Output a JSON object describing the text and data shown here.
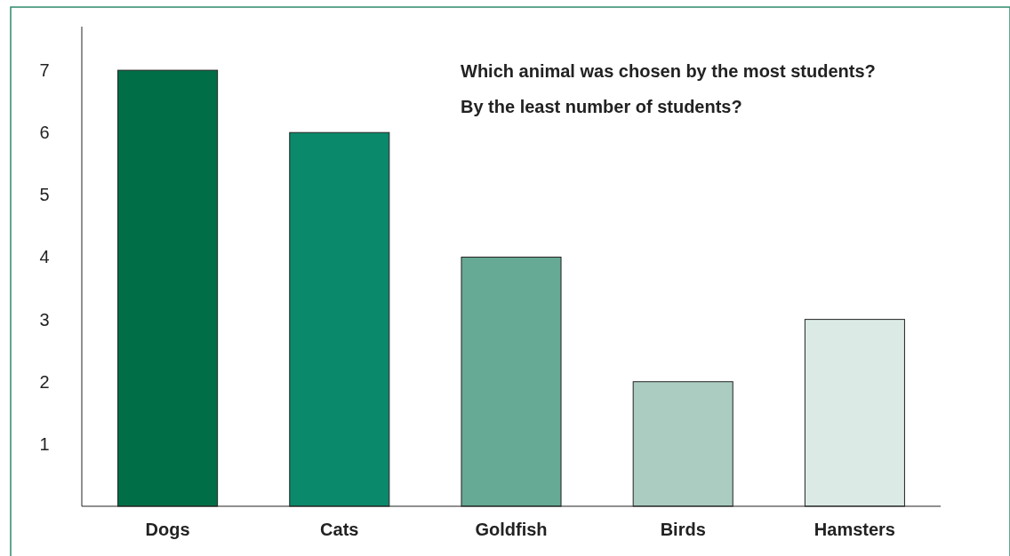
{
  "chart_data": {
    "type": "bar",
    "categories": [
      "Dogs",
      "Cats",
      "Goldfish",
      "Birds",
      "Hamsters"
    ],
    "values": [
      7,
      6,
      4,
      2,
      3
    ],
    "colors": [
      "#006f47",
      "#0a8a6a",
      "#66a994",
      "#abcdc1",
      "#dbeae5"
    ],
    "ylim": [
      0,
      7.7
    ],
    "yticks": [
      1,
      2,
      3,
      4,
      5,
      6,
      7
    ],
    "annotations": [
      "Which animal was chosen by the most students?",
      "By the least number of students?"
    ]
  }
}
